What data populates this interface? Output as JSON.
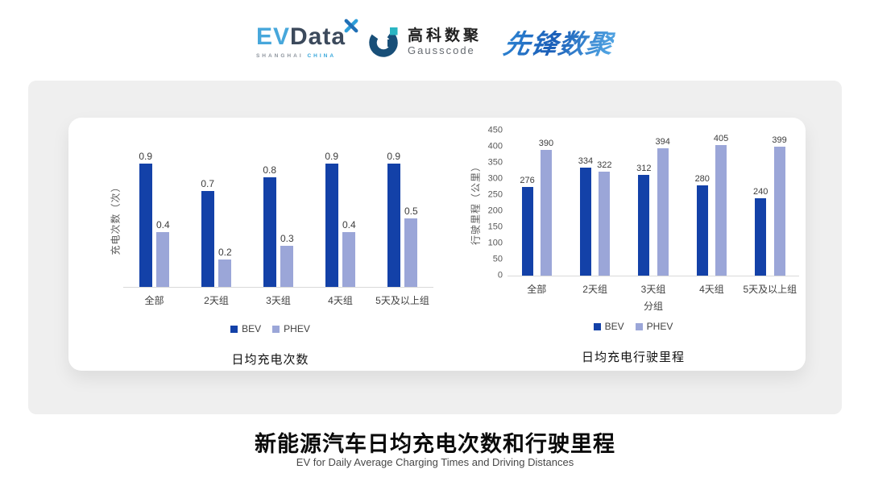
{
  "colors": {
    "bev": "#1341A8",
    "phev": "#9BA6D8",
    "series_colors": [
      "#1341A8",
      "#9BA6D8"
    ],
    "axis_line": "#D9D9D9",
    "panel_bg": "#EFEFEF",
    "card_bg": "#FFFFFF"
  },
  "header": {
    "evdata": {
      "ev": "EV",
      "data": "Data",
      "mark_icon": "propeller-x-icon",
      "sub_left": "SHANGHAI",
      "sub_right": "CHINA"
    },
    "gausscode": {
      "icon": "gausscode-g-icon",
      "name_cn": "高科数聚",
      "name_en": "Gausscode"
    },
    "pioneer": {
      "name_cn": "先锋数聚"
    }
  },
  "footer": {
    "title": "新能源汽车日均充电次数和行驶里程",
    "subtitle": "EV for Daily Average Charging Times and Driving Distances"
  },
  "chart_data": [
    {
      "type": "bar",
      "title": "日均充电次数",
      "ylabel": "充电次数（次）",
      "xlabel": "",
      "categories": [
        "全部",
        "2天组",
        "3天组",
        "4天组",
        "5天及以上组"
      ],
      "series": [
        {
          "name": "BEV",
          "values": [
            0.9,
            0.7,
            0.8,
            0.9,
            0.9
          ]
        },
        {
          "name": "PHEV",
          "values": [
            0.4,
            0.2,
            0.3,
            0.4,
            0.5
          ]
        }
      ],
      "ylim": [
        0,
        1.0
      ],
      "yticks": null,
      "grid": false,
      "legend_position": "bottom"
    },
    {
      "type": "bar",
      "title": "日均充电行驶里程",
      "ylabel": "行驶里程（公里）",
      "xlabel": "分组",
      "categories": [
        "全部",
        "2天组",
        "3天组",
        "4天组",
        "5天及以上组"
      ],
      "series": [
        {
          "name": "BEV",
          "values": [
            276,
            334,
            312,
            280,
            240
          ]
        },
        {
          "name": "PHEV",
          "values": [
            390,
            322,
            394,
            405,
            399
          ]
        }
      ],
      "ylim": [
        0,
        450
      ],
      "yticks": [
        0,
        50,
        100,
        150,
        200,
        250,
        300,
        350,
        400,
        450
      ],
      "grid": false,
      "legend_position": "bottom"
    }
  ]
}
